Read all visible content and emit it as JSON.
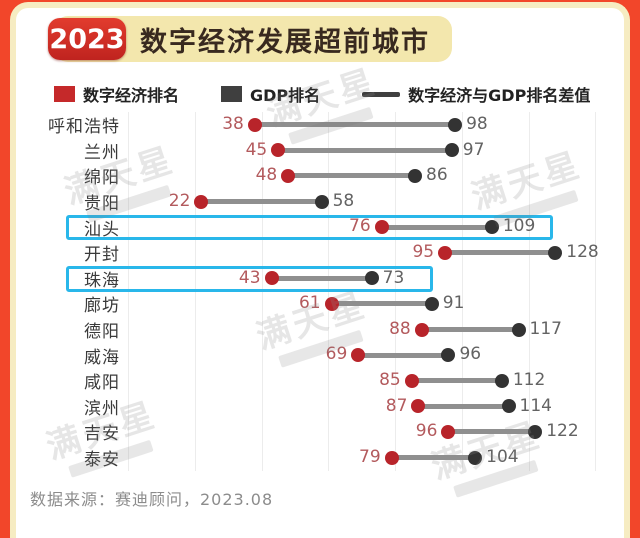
{
  "header": {
    "year_badge": "2023",
    "title": "数字经济发展超前城市"
  },
  "legend": {
    "items": [
      {
        "label": "数字经济排名",
        "swatch": "square",
        "color": "#c5292a"
      },
      {
        "label": "GDP排名",
        "swatch": "square",
        "color": "#3f3f3f"
      },
      {
        "label": "数字经济与GDP排名差值",
        "swatch": "line",
        "color": "#3f3f3f"
      }
    ]
  },
  "chart_data": {
    "type": "dumbbell",
    "title": "2023 数字经济发展超前城市",
    "categories": [
      "呼和浩特",
      "兰州",
      "绵阳",
      "贵阳",
      "汕头",
      "开封",
      "珠海",
      "廊坊",
      "德阳",
      "威海",
      "咸阳",
      "滨州",
      "吉安",
      "泰安"
    ],
    "series": [
      {
        "name": "数字经济排名",
        "values": [
          38,
          45,
          48,
          22,
          76,
          95,
          43,
          61,
          88,
          69,
          85,
          87,
          96,
          79
        ]
      },
      {
        "name": "GDP排名",
        "values": [
          98,
          97,
          86,
          58,
          109,
          128,
          73,
          91,
          117,
          96,
          112,
          114,
          122,
          104
        ]
      }
    ],
    "highlighted_categories": [
      "汕头",
      "珠海"
    ],
    "xlim": [
      0,
      145
    ],
    "gridline_step": 20,
    "grid": "vertical-only",
    "legend_position": "top"
  },
  "watermark": {
    "text": "满天星"
  },
  "footer": {
    "source": "数据来源：赛迪顾问，2023.08"
  },
  "colors": {
    "frame": "#f2462a",
    "card_border": "#f6ecc2",
    "card_bg": "#ffffff",
    "title_pill": "#f3e7ad",
    "badge_red": "#d12d26",
    "title_text": "#38291f",
    "digital_dot": "#b8242a",
    "gdp_dot": "#333333",
    "connector": "#8f8f8f",
    "digital_number": "#b35a5d",
    "gdp_number": "#636363",
    "highlight_box": "#29b7ea",
    "gridline": "#ececec"
  }
}
